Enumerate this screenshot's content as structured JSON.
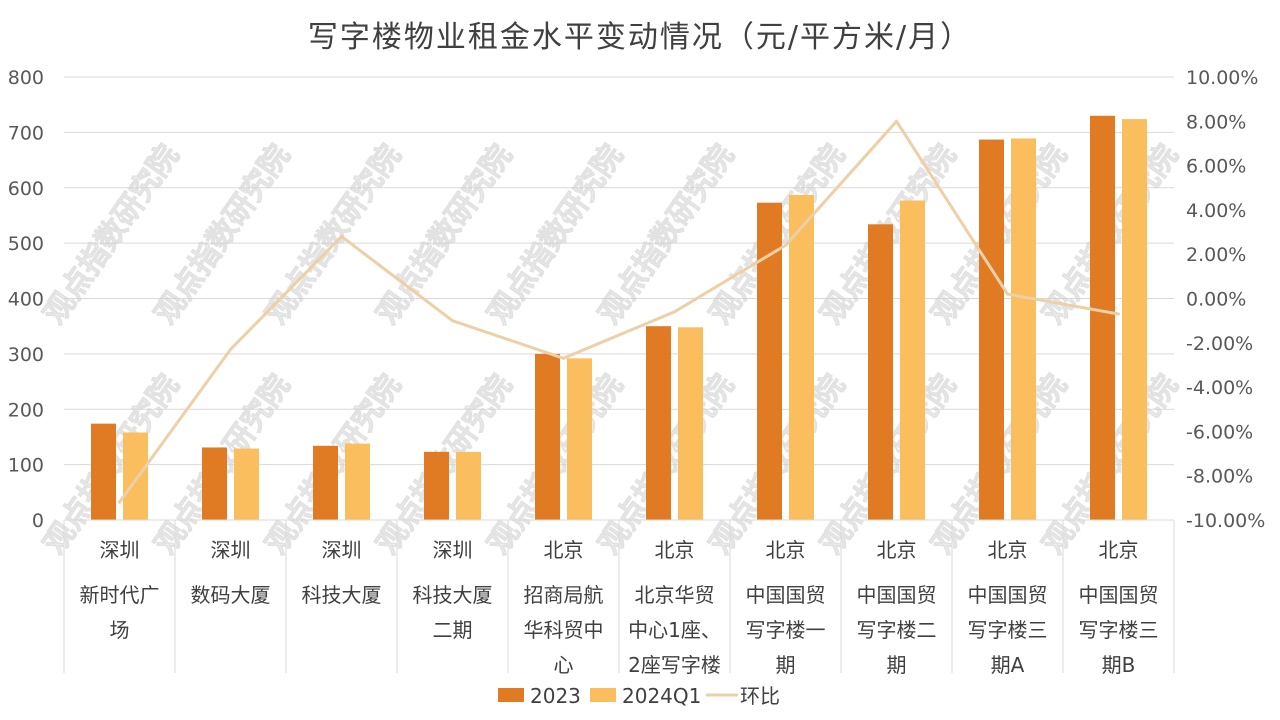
{
  "chart_data": {
    "title": "写字楼物业租金水平变动情况（元/平方米/月）",
    "type": "bar",
    "combo_line": true,
    "categories": [
      {
        "group": "深圳",
        "name": [
          "新时代广",
          "场"
        ]
      },
      {
        "group": "深圳",
        "name": [
          "数码大厦"
        ]
      },
      {
        "group": "深圳",
        "name": [
          "科技大厦"
        ]
      },
      {
        "group": "深圳",
        "name": [
          "科技大厦",
          "二期"
        ]
      },
      {
        "group": "北京",
        "name": [
          "招商局航",
          "华科贸中",
          "心"
        ]
      },
      {
        "group": "北京",
        "name": [
          "北京华贸",
          "中心1座、",
          "2座写字楼"
        ]
      },
      {
        "group": "北京",
        "name": [
          "中国国贸",
          "写字楼一",
          "期"
        ]
      },
      {
        "group": "北京",
        "name": [
          "中国国贸",
          "写字楼二",
          "期"
        ]
      },
      {
        "group": "北京",
        "name": [
          "中国国贸",
          "写字楼三",
          "期A"
        ]
      },
      {
        "group": "北京",
        "name": [
          "中国国贸",
          "写字楼三",
          "期B"
        ]
      }
    ],
    "series": [
      {
        "name": "2023",
        "type": "bar",
        "axis": "left",
        "color": "#E07B24",
        "values": [
          174,
          131,
          134,
          123,
          300,
          350,
          573,
          534,
          687,
          730
        ]
      },
      {
        "name": "2024Q1",
        "type": "bar",
        "axis": "left",
        "color": "#FBBE5E",
        "values": [
          158,
          129,
          138,
          123,
          292,
          348,
          587,
          577,
          689,
          724
        ]
      },
      {
        "name": "环比",
        "type": "line",
        "axis": "right",
        "color": "#EDCFA8",
        "values": [
          -9.2,
          -2.3,
          2.8,
          -1.0,
          -2.7,
          -0.6,
          2.4,
          8.0,
          0.2,
          -0.7
        ]
      }
    ],
    "y_left": {
      "min": 0,
      "max": 800,
      "step": 100,
      "ticks": [
        "0",
        "100",
        "200",
        "300",
        "400",
        "500",
        "600",
        "700",
        "800"
      ]
    },
    "y_right": {
      "min": -10,
      "max": 10,
      "step": 2,
      "ticks": [
        "-10.00%",
        "-8.00%",
        "-6.00%",
        "-4.00%",
        "-2.00%",
        "0.00%",
        "2.00%",
        "4.00%",
        "6.00%",
        "8.00%",
        "10.00%"
      ]
    },
    "grid": true,
    "legend_position": "bottom",
    "watermark": "观点指数研究院"
  }
}
